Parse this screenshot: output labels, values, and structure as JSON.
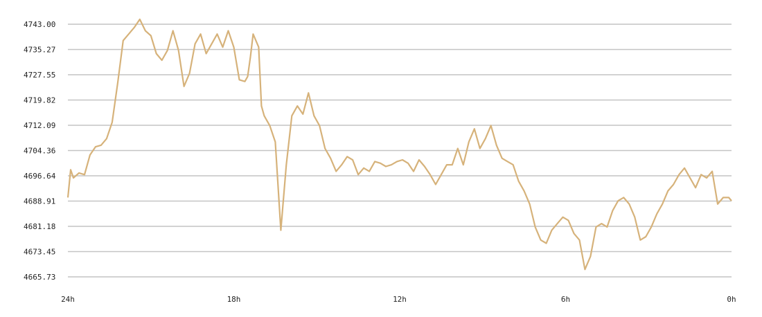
{
  "chart_data": {
    "type": "line",
    "title": "",
    "xlabel": "",
    "ylabel": "",
    "y_ticks": [
      "4743.00",
      "4735.27",
      "4727.55",
      "4719.82",
      "4712.09",
      "4704.36",
      "4696.64",
      "4688.91",
      "4681.18",
      "4673.45",
      "4665.73"
    ],
    "ylim": [
      4665.73,
      4743.0
    ],
    "x_ticks": [
      {
        "label": "24h",
        "hours_ago": 24
      },
      {
        "label": "18h",
        "hours_ago": 18
      },
      {
        "label": "12h",
        "hours_ago": 12
      },
      {
        "label": "6h",
        "hours_ago": 6
      },
      {
        "label": "0h",
        "hours_ago": 0
      }
    ],
    "xlim_hours_ago": [
      24,
      0
    ],
    "grid": true,
    "legend": "none",
    "colors": {
      "line": "#d6b27a",
      "grid": "#c4c4c4",
      "text": "#222222",
      "background": "#ffffff"
    },
    "series": [
      {
        "x_hours_ago": [
          24.0,
          23.9,
          23.8,
          23.6,
          23.4,
          23.2,
          23.0,
          22.8,
          22.6,
          22.4,
          22.2,
          22.0,
          21.8,
          21.6,
          21.4,
          21.2,
          21.0,
          20.8,
          20.6,
          20.4,
          20.2,
          20.0,
          19.8,
          19.6,
          19.4,
          19.2,
          19.0,
          18.8,
          18.6,
          18.4,
          18.2,
          18.0,
          17.8,
          17.6,
          17.5,
          17.4,
          17.3,
          17.1,
          17.0,
          16.9,
          16.7,
          16.5,
          16.3,
          16.1,
          15.9,
          15.7,
          15.5,
          15.3,
          15.1,
          14.9,
          14.7,
          14.5,
          14.3,
          14.1,
          13.9,
          13.7,
          13.5,
          13.3,
          13.1,
          12.9,
          12.7,
          12.5,
          12.3,
          12.1,
          11.9,
          11.7,
          11.5,
          11.3,
          11.1,
          10.9,
          10.7,
          10.5,
          10.3,
          10.1,
          9.9,
          9.7,
          9.5,
          9.3,
          9.1,
          8.9,
          8.7,
          8.5,
          8.3,
          8.1,
          7.9,
          7.7,
          7.5,
          7.3,
          7.1,
          6.9,
          6.7,
          6.5,
          6.3,
          6.1,
          5.9,
          5.7,
          5.5,
          5.3,
          5.1,
          4.9,
          4.7,
          4.5,
          4.3,
          4.1,
          3.9,
          3.7,
          3.5,
          3.3,
          3.1,
          2.9,
          2.7,
          2.5,
          2.3,
          2.1,
          1.9,
          1.7,
          1.5,
          1.3,
          1.1,
          0.9,
          0.7,
          0.5,
          0.3,
          0.1,
          0.0
        ],
        "values": [
          4690.0,
          4698.5,
          4696.0,
          4697.5,
          4697.0,
          4703.0,
          4705.5,
          4706.0,
          4708.0,
          4713.0,
          4725.0,
          4738.0,
          4740.0,
          4742.0,
          4744.5,
          4741.0,
          4739.5,
          4734.0,
          4732.0,
          4735.0,
          4741.0,
          4735.0,
          4724.0,
          4728.0,
          4737.0,
          4740.0,
          4734.0,
          4737.0,
          4740.0,
          4736.0,
          4741.0,
          4736.0,
          4726.0,
          4725.5,
          4727.0,
          4733.0,
          4740.0,
          4736.0,
          4718.0,
          4715.0,
          4712.0,
          4707.0,
          4680.0,
          4700.0,
          4715.0,
          4718.0,
          4715.5,
          4722.0,
          4715.0,
          4712.0,
          4705.0,
          4702.0,
          4698.0,
          4700.0,
          4702.5,
          4701.5,
          4697.0,
          4699.0,
          4698.0,
          4701.0,
          4700.5,
          4699.5,
          4700.0,
          4701.0,
          4701.5,
          4700.5,
          4698.0,
          4701.5,
          4699.5,
          4697.0,
          4694.0,
          4697.0,
          4700.0,
          4700.0,
          4705.0,
          4700.0,
          4707.0,
          4711.0,
          4705.0,
          4708.0,
          4712.0,
          4706.0,
          4702.0,
          4701.0,
          4700.0,
          4695.0,
          4692.0,
          4688.0,
          4681.0,
          4677.0,
          4676.0,
          4680.0,
          4682.0,
          4684.0,
          4683.0,
          4679.0,
          4677.0,
          4668.0,
          4672.0,
          4681.0,
          4682.0,
          4681.0,
          4686.0,
          4689.0,
          4690.0,
          4688.0,
          4684.0,
          4677.0,
          4678.0,
          4681.0,
          4685.0,
          4688.0,
          4692.0,
          4694.0,
          4697.0,
          4699.0,
          4696.0,
          4693.0,
          4697.0,
          4696.0,
          4698.0,
          4688.0,
          4690.0,
          4690.0,
          4689.0
        ]
      }
    ]
  }
}
